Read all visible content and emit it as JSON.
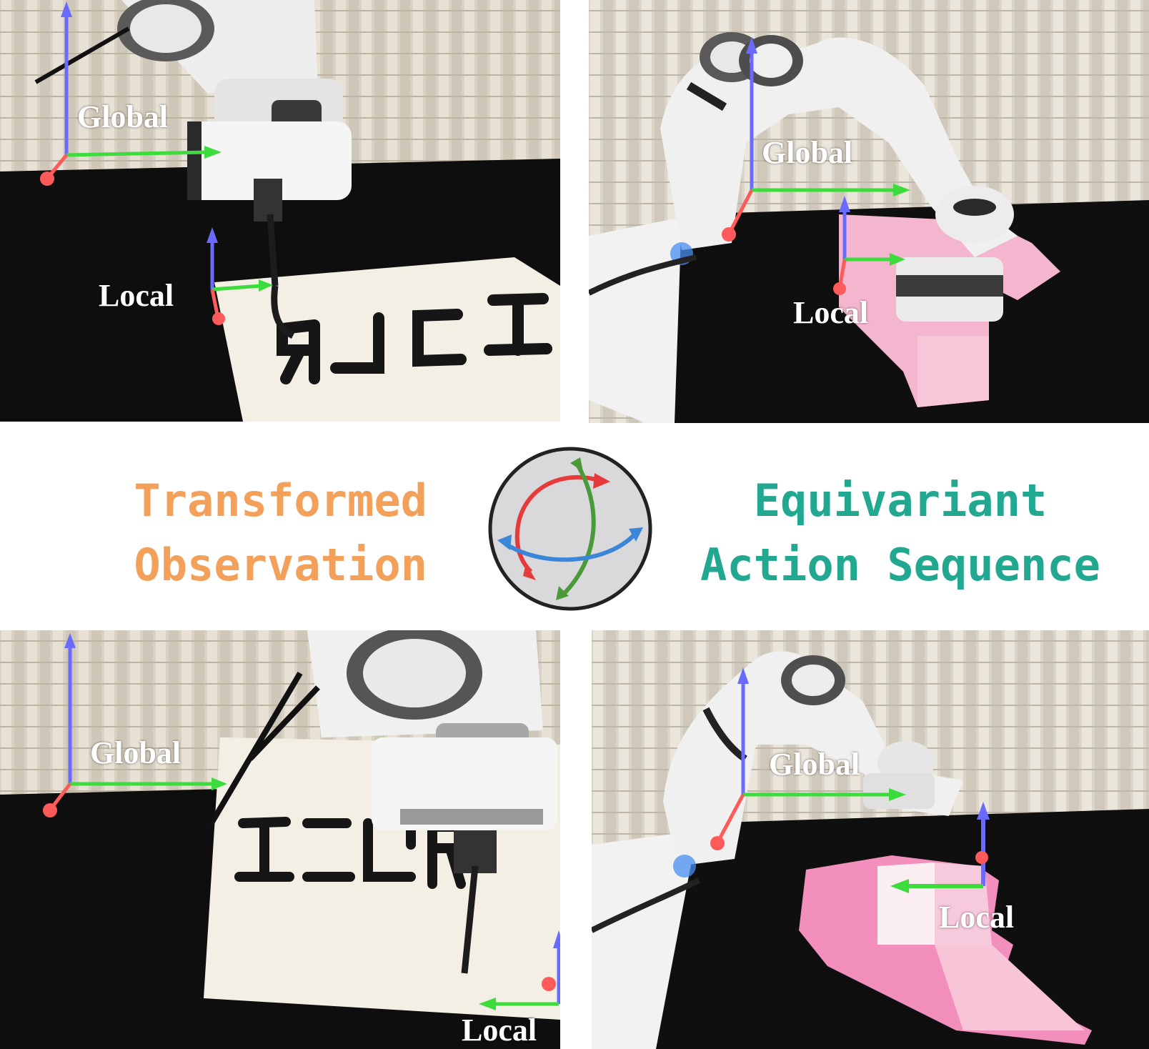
{
  "panels": [
    {
      "id": "top-left",
      "task": "writing",
      "global_label": "Global",
      "local_label": "Local",
      "paper_text": "ICLR"
    },
    {
      "id": "top-right",
      "task": "cloth",
      "global_label": "Global",
      "local_label": "Local"
    },
    {
      "id": "bottom-left",
      "task": "writing",
      "global_label": "Global",
      "local_label": "Local",
      "paper_text": "ICLR"
    },
    {
      "id": "bottom-right",
      "task": "cloth",
      "global_label": "Global",
      "local_label": "Local"
    }
  ],
  "center": {
    "left_line1": "Transformed",
    "left_line2": "Observation",
    "right_line1": "Equivariant",
    "right_line2": "Action Sequence",
    "icon": "rotation-sphere-icon"
  },
  "colors": {
    "left_text": "#f2a05a",
    "right_text": "#22a891",
    "axis_x": "#ff5a5a",
    "axis_y": "#3ddc3d",
    "axis_z": "#6a6aff",
    "icon_red": "#e63b3b",
    "icon_green": "#4a9a3a",
    "icon_blue": "#3a86d8"
  }
}
